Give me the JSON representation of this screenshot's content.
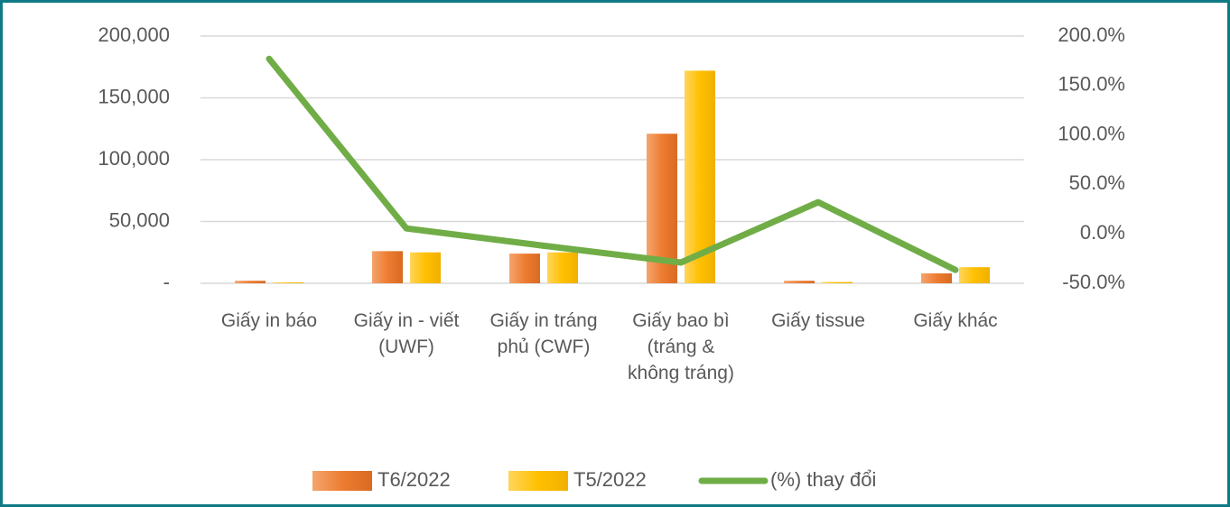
{
  "chart_data": {
    "type": "bar_line",
    "categories": [
      "Giấy in báo",
      "Giấy in - viết (UWF)",
      "Giấy in tráng phủ (CWF)",
      "Giấy bao bì (tráng & không tráng)",
      "Giấy tissue",
      "Giấy khác"
    ],
    "series": [
      {
        "name": "T6/2022",
        "color": "#ed7d31",
        "type": "bar",
        "values": [
          2000,
          26000,
          24000,
          121000,
          2000,
          8000
        ]
      },
      {
        "name": "T5/2022",
        "color": "#ffc000",
        "type": "bar",
        "values": [
          700,
          25000,
          25000,
          172000,
          1000,
          13000
        ]
      },
      {
        "name": "(%) thay đổi",
        "color": "#70ad47",
        "type": "line",
        "axis": "y2",
        "values": [
          177,
          5.5,
          -12,
          -29,
          32,
          -36.5
        ]
      }
    ],
    "ylim": [
      0,
      200000
    ],
    "yticks": [
      {
        "value": 0,
        "label": "-"
      },
      {
        "value": 50000,
        "label": "50,000"
      },
      {
        "value": 100000,
        "label": "100,000"
      },
      {
        "value": 150000,
        "label": "150,000"
      },
      {
        "value": 200000,
        "label": "200,000"
      }
    ],
    "y2lim": [
      -50,
      200
    ],
    "y2ticks": [
      {
        "value": -50,
        "label": "-50.0%"
      },
      {
        "value": 0,
        "label": "0.0%"
      },
      {
        "value": 50,
        "label": "50.0%"
      },
      {
        "value": 100,
        "label": "100.0%"
      },
      {
        "value": 150,
        "label": "150.0%"
      },
      {
        "value": 200,
        "label": "200.0%"
      }
    ],
    "grid": true,
    "legend": "bottom"
  }
}
